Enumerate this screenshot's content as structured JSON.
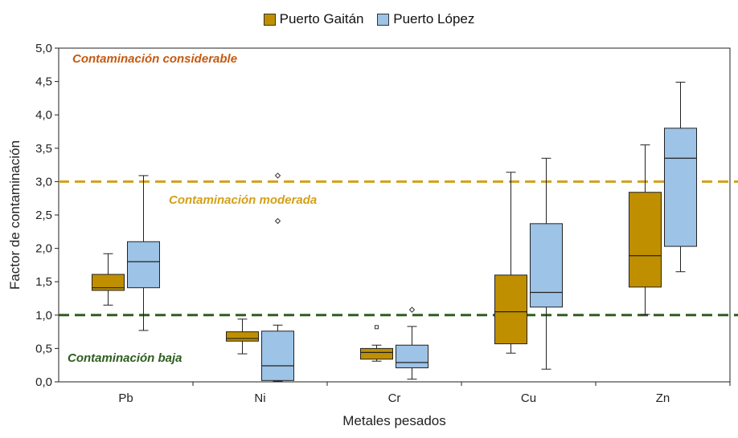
{
  "chart_data": {
    "type": "boxplot",
    "xlabel": "Metales pesados",
    "ylabel": "Factor de contaminación",
    "ylim": [
      0,
      5
    ],
    "yticks": [
      "0,0",
      "0,5",
      "1,0",
      "1,5",
      "2,0",
      "2,5",
      "3,0",
      "3,5",
      "4,0",
      "4,5",
      "5,0"
    ],
    "categories": [
      "Pb",
      "Ni",
      "Cr",
      "Cu",
      "Zn"
    ],
    "legend_position": "top-center",
    "series": [
      {
        "name": "Puerto Gaitán",
        "color": "#BF8F00",
        "boxes": [
          {
            "min": 1.15,
            "q1": 1.37,
            "median": 1.41,
            "q3": 1.61,
            "max": 1.92,
            "outliers": []
          },
          {
            "min": 0.42,
            "q1": 0.61,
            "median": 0.65,
            "q3": 0.75,
            "max": 0.94,
            "outliers": []
          },
          {
            "min": 0.31,
            "q1": 0.34,
            "median": 0.44,
            "q3": 0.5,
            "max": 0.55,
            "outliers": [
              0.82
            ]
          },
          {
            "min": 0.43,
            "q1": 0.57,
            "median": 1.05,
            "q3": 1.6,
            "max": 3.14,
            "outliers": []
          },
          {
            "min": 1.01,
            "q1": 1.42,
            "median": 1.89,
            "q3": 2.84,
            "max": 3.55,
            "outliers": []
          }
        ]
      },
      {
        "name": "Puerto López",
        "color": "#9DC3E6",
        "boxes": [
          {
            "min": 0.77,
            "q1": 1.41,
            "median": 1.8,
            "q3": 2.1,
            "max": 3.09,
            "outliers": []
          },
          {
            "min": 0.01,
            "q1": 0.02,
            "median": 0.24,
            "q3": 0.76,
            "max": 0.85,
            "outliers": [
              3.09,
              2.41
            ]
          },
          {
            "min": 0.04,
            "q1": 0.21,
            "median": 0.29,
            "q3": 0.55,
            "max": 0.83,
            "outliers": [
              1.08
            ]
          },
          {
            "min": 0.19,
            "q1": 1.12,
            "median": 1.34,
            "q3": 2.37,
            "max": 3.35,
            "outliers": []
          },
          {
            "min": 1.65,
            "q1": 2.03,
            "median": 3.35,
            "q3": 3.8,
            "max": 4.49,
            "outliers": []
          }
        ]
      }
    ],
    "reference_lines": [
      {
        "y": 3.0,
        "color": "#D4A017",
        "label": "Contaminación moderada"
      },
      {
        "y": 1.0,
        "color": "#2E5E1E",
        "label": "Contaminación baja"
      }
    ],
    "annotations": [
      {
        "text": "Contaminación considerable",
        "color": "#C55A11"
      }
    ]
  }
}
